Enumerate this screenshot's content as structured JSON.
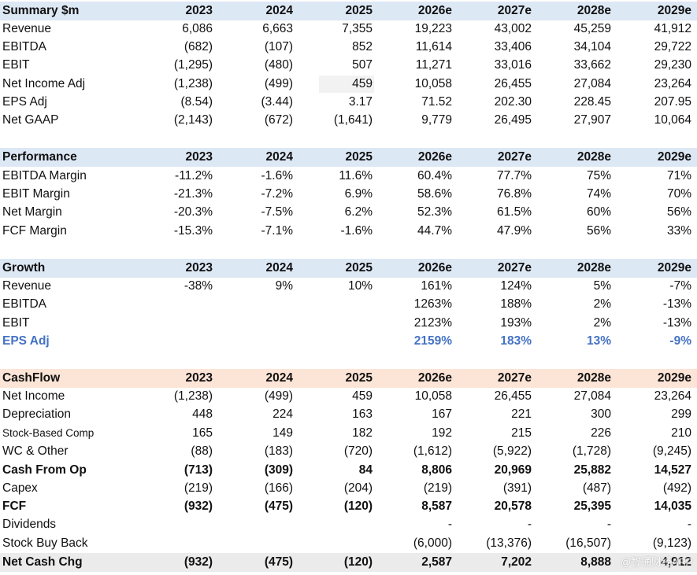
{
  "watermark": "@智通财经APP",
  "sections": [
    {
      "title": "Summary $m",
      "columns": [
        "2023",
        "2024",
        "2025",
        "2026e",
        "2027e",
        "2028e",
        "2029e"
      ],
      "rows": [
        {
          "label": "Revenue",
          "values": [
            "6,086",
            "6,663",
            "7,355",
            "19,223",
            "43,002",
            "45,259",
            "41,912"
          ]
        },
        {
          "label": "EBITDA",
          "values": [
            "(682)",
            "(107)",
            "852",
            "11,614",
            "33,406",
            "34,104",
            "29,722"
          ]
        },
        {
          "label": "EBIT",
          "values": [
            "(1,295)",
            "(480)",
            "507",
            "11,271",
            "33,016",
            "33,662",
            "29,230"
          ]
        },
        {
          "label": "Net Income Adj",
          "values": [
            "(1,238)",
            "(499)",
            "459",
            "10,058",
            "26,455",
            "27,084",
            "23,264"
          ]
        },
        {
          "label": "EPS Adj",
          "values": [
            "(8.54)",
            "(3.44)",
            "3.17",
            "71.52",
            "202.30",
            "228.45",
            "207.95"
          ]
        },
        {
          "label": "Net GAAP",
          "values": [
            "(2,143)",
            "(672)",
            "(1,641)",
            "9,779",
            "26,495",
            "27,907",
            "10,064"
          ]
        }
      ]
    },
    {
      "title": "Performance",
      "columns": [
        "2023",
        "2024",
        "2025",
        "2026e",
        "2027e",
        "2028e",
        "2029e"
      ],
      "rows": [
        {
          "label": "EBITDA Margin",
          "values": [
            "-11.2%",
            "-1.6%",
            "11.6%",
            "60.4%",
            "77.7%",
            "75%",
            "71%"
          ]
        },
        {
          "label": "EBIT Margin",
          "values": [
            "-21.3%",
            "-7.2%",
            "6.9%",
            "58.6%",
            "76.8%",
            "74%",
            "70%"
          ]
        },
        {
          "label": "Net Margin",
          "values": [
            "-20.3%",
            "-7.5%",
            "6.2%",
            "52.3%",
            "61.5%",
            "60%",
            "56%"
          ]
        },
        {
          "label": "FCF Margin",
          "values": [
            "-15.3%",
            "-7.1%",
            "-1.6%",
            "44.7%",
            "47.9%",
            "56%",
            "33%"
          ]
        }
      ]
    },
    {
      "title": "Growth",
      "columns": [
        "2023",
        "2024",
        "2025",
        "2026e",
        "2027e",
        "2028e",
        "2029e"
      ],
      "rows": [
        {
          "label": "Revenue",
          "values": [
            "-38%",
            "9%",
            "10%",
            "161%",
            "124%",
            "5%",
            "-7%"
          ]
        },
        {
          "label": "EBITDA",
          "values": [
            "",
            "",
            "",
            "1263%",
            "188%",
            "2%",
            "-13%"
          ]
        },
        {
          "label": "EBIT",
          "values": [
            "",
            "",
            "",
            "2123%",
            "193%",
            "2%",
            "-13%"
          ]
        },
        {
          "label": "EPS Adj",
          "values": [
            "",
            "",
            "",
            "2159%",
            "183%",
            "13%",
            "-9%"
          ]
        }
      ]
    },
    {
      "title": "CashFlow",
      "columns": [
        "2023",
        "2024",
        "2025",
        "2026e",
        "2027e",
        "2028e",
        "2029e"
      ],
      "rows": [
        {
          "label": "Net Income",
          "values": [
            "(1,238)",
            "(499)",
            "459",
            "10,058",
            "26,455",
            "27,084",
            "23,264"
          ]
        },
        {
          "label": "Depreciation",
          "values": [
            "448",
            "224",
            "163",
            "167",
            "221",
            "300",
            "299"
          ]
        },
        {
          "label": "Stock-Based Comp",
          "values": [
            "165",
            "149",
            "182",
            "192",
            "215",
            "226",
            "210"
          ]
        },
        {
          "label": "WC & Other",
          "values": [
            "(88)",
            "(183)",
            "(720)",
            "(1,612)",
            "(5,922)",
            "(1,728)",
            "(9,245)"
          ]
        },
        {
          "label": "Cash From Op",
          "values": [
            "(713)",
            "(309)",
            "84",
            "8,806",
            "20,969",
            "25,882",
            "14,527"
          ]
        },
        {
          "label": "Capex",
          "values": [
            "(219)",
            "(166)",
            "(204)",
            "(219)",
            "(391)",
            "(487)",
            "(492)"
          ]
        },
        {
          "label": "FCF",
          "values": [
            "(932)",
            "(475)",
            "(120)",
            "8,587",
            "20,578",
            "25,395",
            "14,035"
          ]
        },
        {
          "label": "Dividends",
          "values": [
            "",
            "",
            "",
            "-",
            "-",
            "-",
            "-"
          ]
        },
        {
          "label": "Stock Buy Back",
          "values": [
            "",
            "",
            "",
            "(6,000)",
            "(13,376)",
            "(16,507)",
            "(9,123)"
          ]
        },
        {
          "label": "Net Cash Chg",
          "values": [
            "(932)",
            "(475)",
            "(120)",
            "2,587",
            "7,202",
            "8,888",
            "4,912"
          ]
        }
      ]
    }
  ],
  "colors": {
    "summary_header_bg": "#dde8f5",
    "performance_header_bg": "#dde8f5",
    "growth_header_bg": "#dde8f5",
    "cashflow_header_bg": "#fce4d6",
    "net_cash_row_bg": "#ebebeb",
    "highlight_text": "#4472c4"
  }
}
